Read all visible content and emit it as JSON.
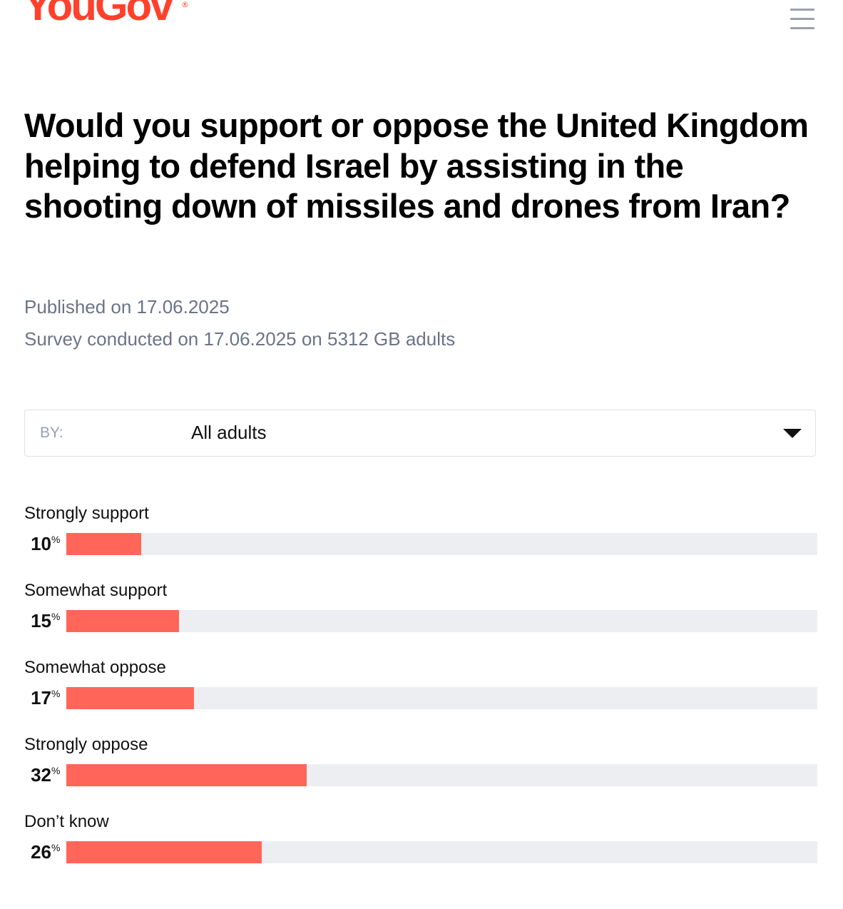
{
  "header": {
    "logo_text": "YouGov",
    "logo_reg": "®",
    "menu_icon": "hamburger-menu-icon"
  },
  "question": "Would you support or oppose the United Kingdom helping to defend Israel by assisting in the shooting down of missiles and drones from Iran?",
  "meta": {
    "published": "Published on 17.06.2025",
    "survey": "Survey conducted on 17.06.2025 on 5312 GB adults"
  },
  "filter": {
    "label": "BY:",
    "selected": "All adults",
    "caret_icon": "caret-down-icon"
  },
  "colors": {
    "brand": "#ff412c",
    "bar": "#ff6659",
    "track": "#eceef2",
    "meta_text": "#6c7388"
  },
  "chart_data": {
    "type": "bar",
    "orientation": "horizontal",
    "unit": "%",
    "xlim": [
      0,
      100
    ],
    "categories": [
      "Strongly support",
      "Somewhat support",
      "Somewhat oppose",
      "Strongly oppose",
      "Don’t know"
    ],
    "values": [
      10,
      15,
      17,
      32,
      26
    ]
  }
}
